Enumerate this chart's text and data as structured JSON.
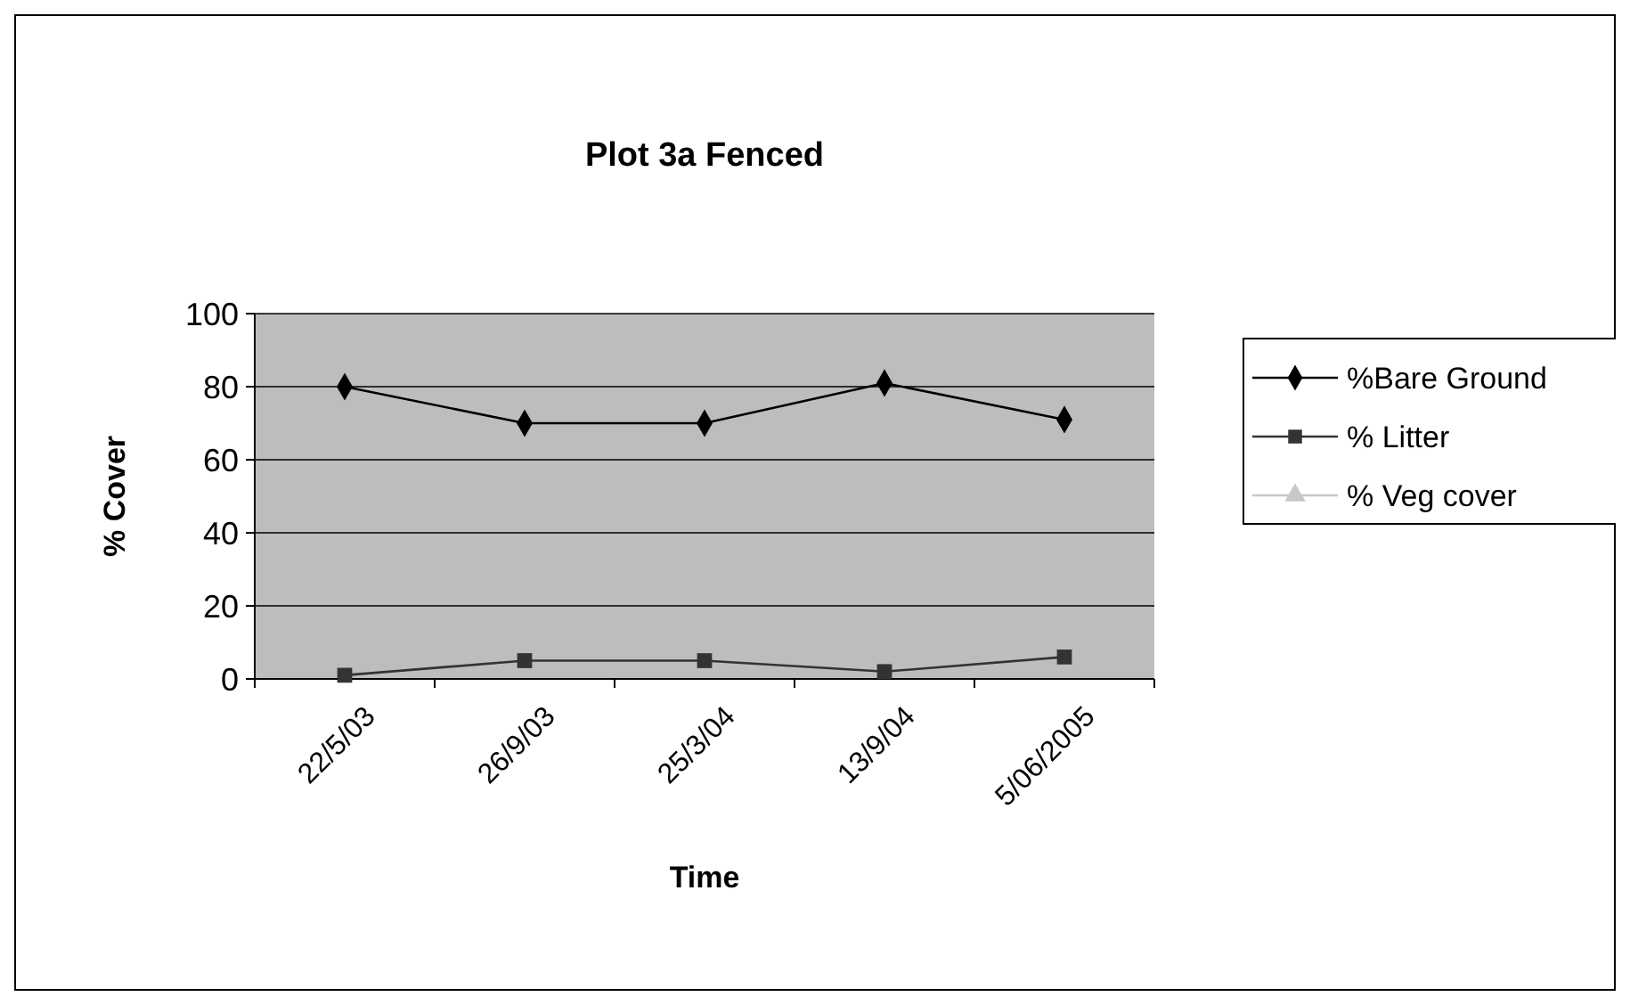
{
  "chart_data": {
    "type": "line",
    "title": "Plot 3a Fenced",
    "xlabel": "Time",
    "ylabel": "% Cover",
    "categories": [
      "22/5/03",
      "26/9/03",
      "25/3/04",
      "13/9/04",
      "5/06/2005"
    ],
    "series": [
      {
        "name": "%Bare Ground",
        "color": "#000000",
        "marker": "diamond",
        "values": [
          80,
          70,
          70,
          81,
          71
        ]
      },
      {
        "name": "% Litter",
        "color": "#333333",
        "marker": "square",
        "values": [
          1,
          5,
          5,
          2,
          6
        ]
      },
      {
        "name": "% Veg cover",
        "color": "#c8c8c8",
        "marker": "triangle",
        "values": [
          null,
          null,
          null,
          null,
          null
        ]
      }
    ],
    "ylim": [
      0,
      100
    ],
    "yticks": [
      0,
      20,
      40,
      60,
      80,
      100
    ],
    "grid": "y",
    "legend": "right"
  }
}
